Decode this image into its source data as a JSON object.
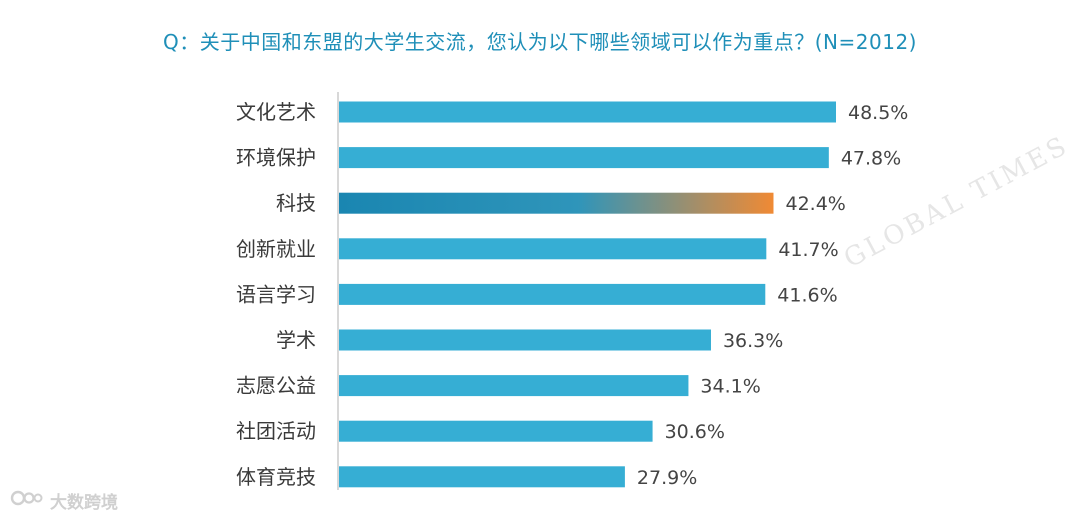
{
  "title": "Q：关于中国和东盟的大学生交流，您认为以下哪些领域可以作为重点？(N=2012)",
  "watermark": "GLOBAL TIMES",
  "brand": "大数跨境",
  "colors": {
    "bar": "#36aed4",
    "highlight_start": "#1a86b1",
    "highlight_end": "#f08a34",
    "axis": "#bdbdbd",
    "title": "#1f8fb8"
  },
  "chart_data": {
    "type": "bar",
    "orientation": "horizontal",
    "categories": [
      "文化艺术",
      "环境保护",
      "科技",
      "创新就业",
      "语言学习",
      "学术",
      "志愿公益",
      "社团活动",
      "体育竞技"
    ],
    "values": [
      48.5,
      47.8,
      42.4,
      41.7,
      41.6,
      36.3,
      34.1,
      30.6,
      27.9
    ],
    "value_labels": [
      "48.5%",
      "47.8%",
      "42.4%",
      "41.7%",
      "41.6%",
      "36.3%",
      "34.1%",
      "30.6%",
      "27.9%"
    ],
    "highlighted_index": 2,
    "xlim": [
      0,
      60
    ],
    "unit": "%",
    "grid": false,
    "legend": "none"
  }
}
